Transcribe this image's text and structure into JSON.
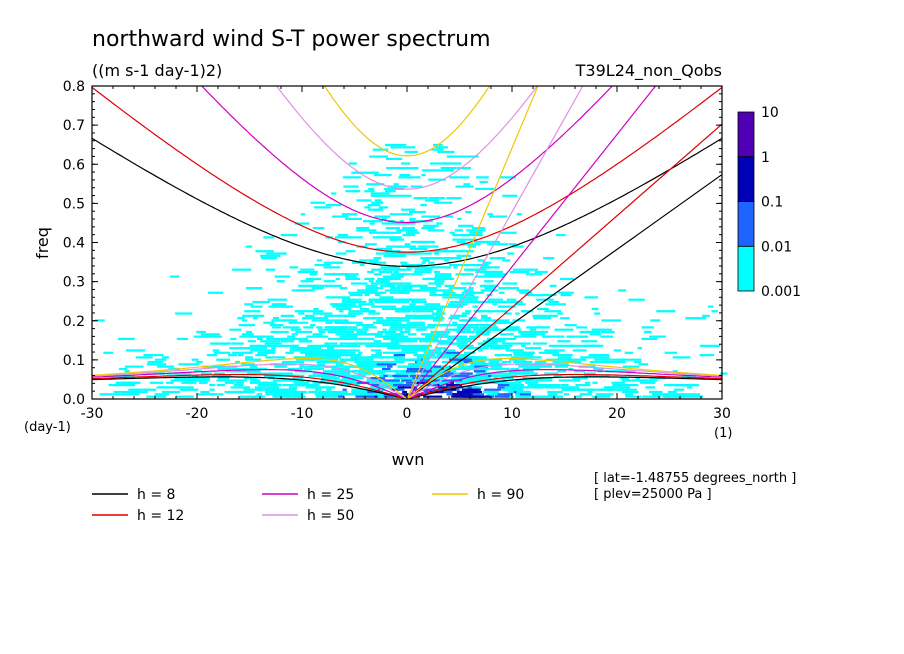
{
  "chart_data": {
    "type": "heatmap",
    "title": "northward wind S-T power spectrum",
    "units": "((m s-1 day-1)2)",
    "experiment": "T39L24_non_Qobs",
    "xlabel": "wvn",
    "ylabel": "freq",
    "x_unit": "(1)",
    "y_unit": "(day-1)",
    "xlim": [
      -30,
      30
    ],
    "ylim": [
      0,
      0.8
    ],
    "xticks": [
      -30,
      -20,
      -10,
      0,
      10,
      20,
      30
    ],
    "yticks": [
      0.0,
      0.1,
      0.2,
      0.3,
      0.4,
      0.5,
      0.6,
      0.7,
      0.8
    ],
    "xtick_labels": [
      "-30",
      "-20",
      "-10",
      "0",
      "10",
      "20",
      "30"
    ],
    "ytick_labels": [
      "0.0",
      "0.1",
      "0.2",
      "0.3",
      "0.4",
      "0.5",
      "0.6",
      "0.7",
      "0.8"
    ],
    "colorbar": {
      "levels": [
        "0.001",
        "0.01",
        "0.1",
        "1",
        "10"
      ],
      "colors": [
        "#00ffff",
        "#1e64ff",
        "#0000b4",
        "#5000b4"
      ]
    },
    "dispersion_curves": [
      {
        "label": "h =  8",
        "h": 8,
        "color": "#000000"
      },
      {
        "label": "h = 12",
        "h": 12,
        "color": "#e00000"
      },
      {
        "label": "h = 25",
        "h": 25,
        "color": "#d000c0"
      },
      {
        "label": "h = 50",
        "h": 50,
        "color": "#e090e0"
      },
      {
        "label": "h = 90",
        "h": 90,
        "color": "#f0c800"
      }
    ],
    "annotations": [
      "[ lat=-1.48755 degrees_north ]",
      "[ plev=25000 Pa ]"
    ]
  }
}
